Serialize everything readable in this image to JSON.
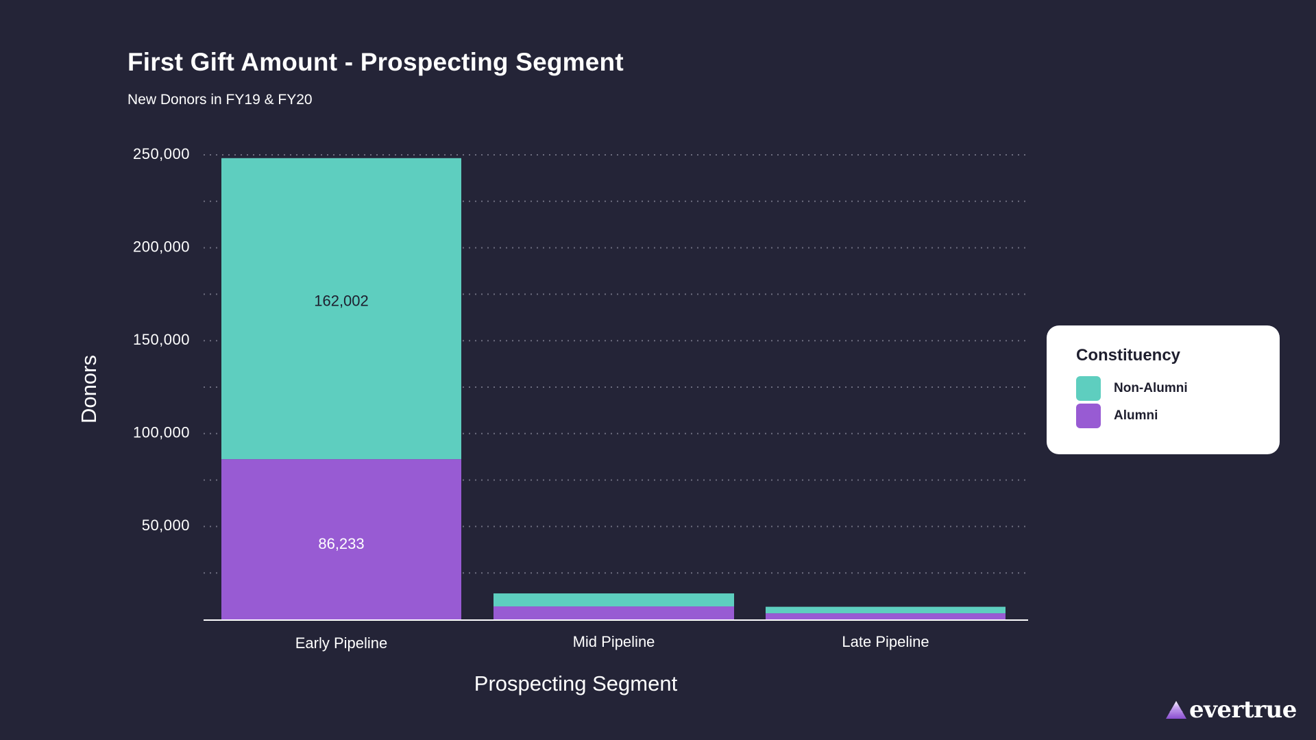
{
  "title": "First Gift Amount - Prospecting Segment",
  "subtitle": "New Donors in FY19 & FY20",
  "legend": {
    "title": "Constituency",
    "items": [
      {
        "label": "Non-Alumni",
        "color": "#5ecebf"
      },
      {
        "label": "Alumni",
        "color": "#985bd3"
      }
    ]
  },
  "logo": {
    "text": "evertrue",
    "icon": "mountain-triangle-icon"
  },
  "colors": {
    "background": "#242437",
    "grid": "#6e6e80",
    "axis": "#ffffff"
  },
  "chart_data": {
    "type": "bar",
    "stacked": true,
    "title": "First Gift Amount - Prospecting Segment",
    "subtitle": "New Donors in FY19 & FY20",
    "xlabel": "Prospecting Segment",
    "ylabel": "Donors",
    "categories": [
      "Early Pipeline",
      "Mid Pipeline",
      "Late Pipeline"
    ],
    "series": [
      {
        "name": "Alumni",
        "color": "#985bd3",
        "values": [
          86233,
          7000,
          3300
        ],
        "labels": [
          "86,233",
          null,
          null
        ],
        "label_color": "#ffffff"
      },
      {
        "name": "Non-Alumni",
        "color": "#5ecebf",
        "values": [
          162002,
          7000,
          3500
        ],
        "labels": [
          "162,002",
          null,
          null
        ],
        "label_color": "#1e1e2e"
      }
    ],
    "ylim": [
      0,
      250000
    ],
    "yticks": [
      50000,
      100000,
      150000,
      200000,
      250000
    ],
    "ytick_labels": [
      "50,000",
      "100,000",
      "150,000",
      "200,000",
      "250,000"
    ],
    "minor_gridlines": [
      25000,
      75000,
      125000,
      175000,
      225000
    ],
    "grid": true,
    "grid_style": "dotted",
    "legend_title": "Constituency",
    "legend_position": "right"
  }
}
